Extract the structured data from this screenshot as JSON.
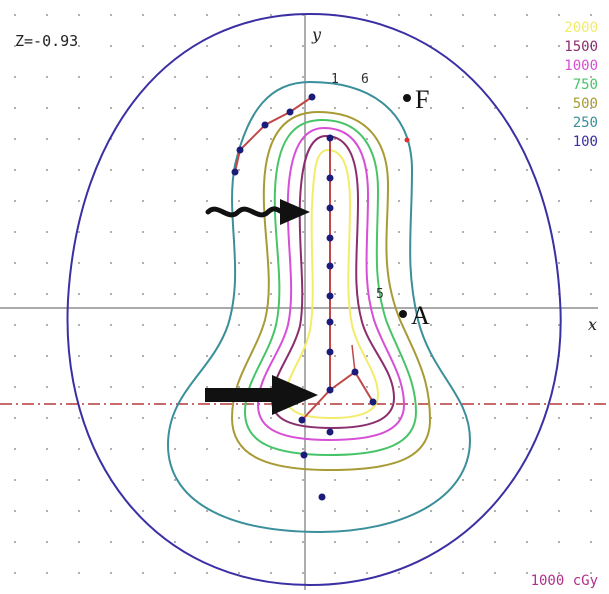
{
  "z_label": "Z=-0.93",
  "axes": {
    "x": "x",
    "y": "y"
  },
  "points": {
    "f": "F",
    "a": "A"
  },
  "seed_labels": {
    "first": "1",
    "sixth": "6",
    "fifth": "5"
  },
  "dose_unit": "1000 cGy",
  "legend": [
    {
      "label": "2000",
      "color": "#f2ec6a"
    },
    {
      "label": "1500",
      "color": "#8b2e6e"
    },
    {
      "label": "1000",
      "color": "#d64fd6"
    },
    {
      "label": "750",
      "color": "#48c468"
    },
    {
      "label": "500",
      "color": "#a89a34"
    },
    {
      "label": "250",
      "color": "#3a8f9a"
    },
    {
      "label": "100",
      "color": "#3b2fa4"
    }
  ]
}
